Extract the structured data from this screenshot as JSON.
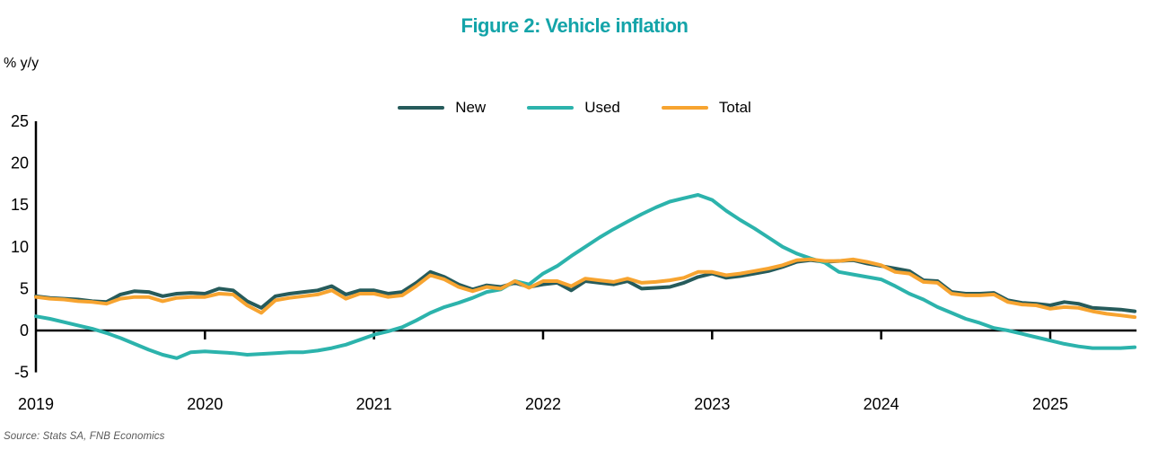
{
  "title": "Figure 2: Vehicle inflation",
  "y_axis_unit": "% y/y",
  "source": "Source: Stats SA, FNB Economics",
  "colors": {
    "title": "#14A4A9",
    "axis": "#000000",
    "source_text": "#595959"
  },
  "chart_data": {
    "type": "line",
    "title": "Figure 2: Vehicle inflation",
    "ylabel": "% y/y",
    "xlabel": "",
    "ylim": [
      -5,
      25
    ],
    "y_ticks": [
      25,
      20,
      15,
      10,
      5,
      0,
      -5
    ],
    "x_tick_labels": [
      "2019",
      "2020",
      "2021",
      "2022",
      "2023",
      "2024",
      "2025"
    ],
    "x_start": "2019-01",
    "x_frequency": "monthly",
    "grid": false,
    "legend_position": "top-center",
    "zero_baseline": true,
    "series": [
      {
        "name": "New",
        "color": "#265B5B",
        "values": [
          4.1,
          3.9,
          3.8,
          3.7,
          3.5,
          3.4,
          4.3,
          4.7,
          4.6,
          4.1,
          4.4,
          4.5,
          4.4,
          5.0,
          4.8,
          3.5,
          2.7,
          4.1,
          4.4,
          4.6,
          4.8,
          5.3,
          4.3,
          4.8,
          4.8,
          4.4,
          4.6,
          5.7,
          7.0,
          6.4,
          5.5,
          4.9,
          5.4,
          5.2,
          5.7,
          5.2,
          5.5,
          5.7,
          4.8,
          5.9,
          5.7,
          5.5,
          5.9,
          5.0,
          5.1,
          5.2,
          5.7,
          6.4,
          6.8,
          6.3,
          6.5,
          6.8,
          7.1,
          7.6,
          8.2,
          8.4,
          8.2,
          8.3,
          8.4,
          8.0,
          7.7,
          7.4,
          7.1,
          6.0,
          5.9,
          4.6,
          4.4,
          4.4,
          4.5,
          3.6,
          3.3,
          3.2,
          3.0,
          3.4,
          3.2,
          2.7,
          2.6,
          2.5,
          2.3
        ]
      },
      {
        "name": "Used",
        "color": "#2CB3AC",
        "values": [
          1.7,
          1.4,
          1.0,
          0.6,
          0.2,
          -0.3,
          -0.9,
          -1.6,
          -2.3,
          -2.9,
          -3.3,
          -2.6,
          -2.5,
          -2.6,
          -2.7,
          -2.9,
          -2.8,
          -2.7,
          -2.6,
          -2.6,
          -2.4,
          -2.1,
          -1.7,
          -1.1,
          -0.5,
          -0.1,
          0.4,
          1.2,
          2.1,
          2.8,
          3.3,
          3.9,
          4.6,
          4.9,
          5.9,
          5.5,
          6.8,
          7.7,
          8.9,
          10.0,
          11.1,
          12.1,
          13.0,
          13.9,
          14.7,
          15.4,
          15.8,
          16.2,
          15.6,
          14.3,
          13.2,
          12.2,
          11.1,
          10.0,
          9.2,
          8.6,
          8.1,
          7.0,
          6.7,
          6.4,
          6.1,
          5.3,
          4.4,
          3.7,
          2.8,
          2.1,
          1.4,
          0.9,
          0.3,
          0.0,
          -0.4,
          -0.8,
          -1.2,
          -1.6,
          -1.9,
          -2.1,
          -2.1,
          -2.1,
          -2.0
        ]
      },
      {
        "name": "Total",
        "color": "#F7A430",
        "values": [
          4.0,
          3.8,
          3.7,
          3.5,
          3.4,
          3.2,
          3.8,
          4.0,
          4.0,
          3.5,
          3.9,
          4.0,
          4.0,
          4.4,
          4.3,
          3.0,
          2.1,
          3.6,
          3.9,
          4.1,
          4.3,
          4.8,
          3.8,
          4.4,
          4.4,
          4.0,
          4.2,
          5.3,
          6.6,
          6.1,
          5.2,
          4.7,
          5.2,
          5.0,
          5.9,
          5.1,
          5.9,
          5.9,
          5.3,
          6.2,
          6.0,
          5.8,
          6.2,
          5.7,
          5.8,
          6.0,
          6.3,
          7.0,
          7.0,
          6.6,
          6.8,
          7.1,
          7.4,
          7.8,
          8.4,
          8.5,
          8.3,
          8.3,
          8.5,
          8.2,
          7.8,
          7.0,
          6.8,
          5.8,
          5.7,
          4.4,
          4.2,
          4.2,
          4.3,
          3.4,
          3.1,
          3.0,
          2.6,
          2.8,
          2.7,
          2.3,
          2.0,
          1.8,
          1.6
        ]
      }
    ]
  }
}
